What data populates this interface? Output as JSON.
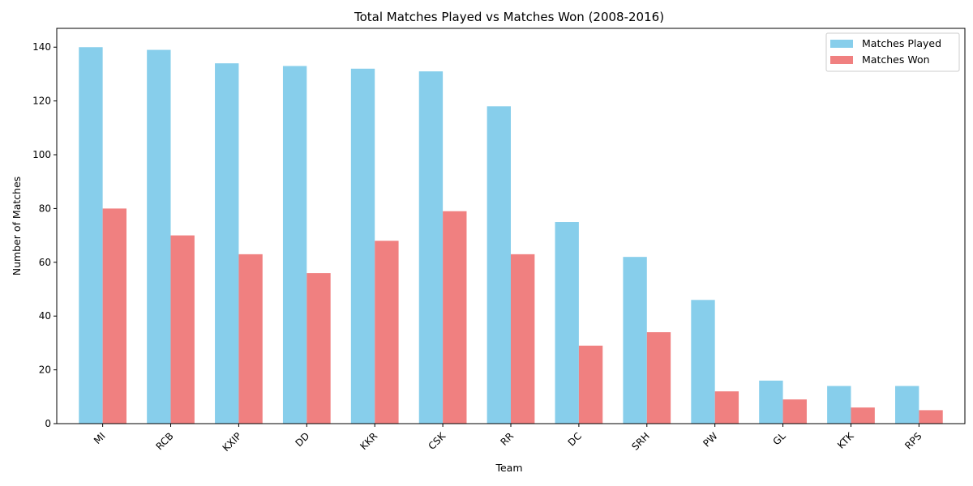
{
  "chart_data": {
    "type": "bar",
    "title": "Total Matches Played vs Matches Won (2008-2016)",
    "xlabel": "Team",
    "ylabel": "Number of Matches",
    "categories": [
      "MI",
      "RCB",
      "KXIP",
      "DD",
      "KKR",
      "CSK",
      "RR",
      "DC",
      "SRH",
      "PW",
      "GL",
      "KTK",
      "RPS"
    ],
    "series": [
      {
        "name": "Matches Played",
        "color": "#87ceeb",
        "values": [
          140,
          139,
          134,
          133,
          132,
          131,
          118,
          75,
          62,
          46,
          16,
          14,
          14
        ]
      },
      {
        "name": "Matches Won",
        "color": "#f08080",
        "values": [
          80,
          70,
          63,
          56,
          68,
          79,
          63,
          29,
          34,
          12,
          9,
          6,
          5
        ]
      }
    ],
    "ylim": [
      0,
      147
    ],
    "yticks": [
      0,
      20,
      40,
      60,
      80,
      100,
      120,
      140
    ],
    "grid": false,
    "legend_position": "top-right"
  }
}
